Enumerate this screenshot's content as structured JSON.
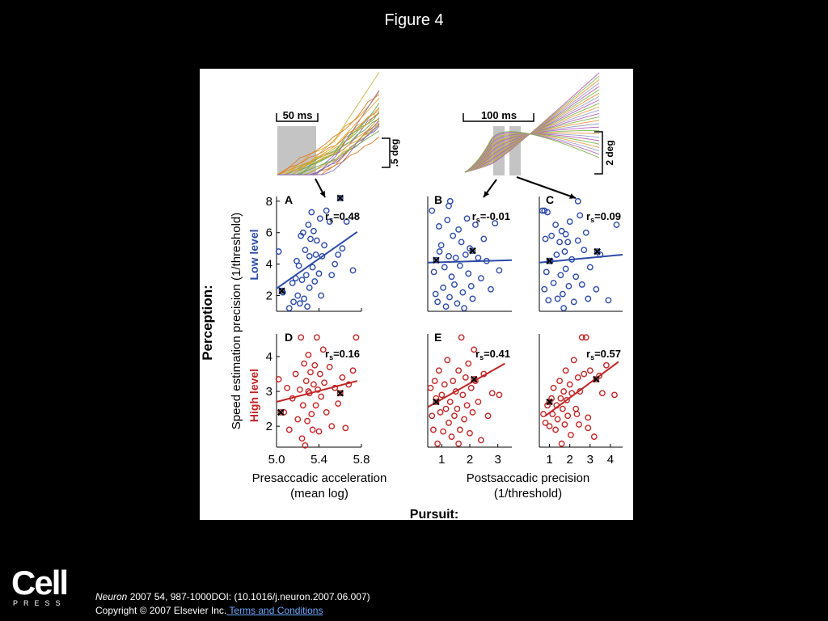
{
  "slide": {
    "title": "Figure 4",
    "publisher_logo": {
      "name": "Cell",
      "sub": "PRESS"
    },
    "citation": {
      "journal": "Neuron",
      "rest": " 2007 54, 987-1000DOI: (10.1016/j.neuron.2007.06.007)"
    },
    "copyright": "Copyright © 2007 Elsevier Inc.",
    "terms_link": " Terms and Conditions"
  },
  "colors": {
    "blue": "#2b4aa6",
    "red": "#c12525",
    "gray": "#c4c4c4",
    "black": "#000000"
  },
  "trace_insets": [
    {
      "scale_time": "50 ms",
      "scale_pos": ".5 deg",
      "line_colors": [
        "#e0a020",
        "#8a6ab0",
        "#6aa84f",
        "#e07b24",
        "#c9b34a"
      ]
    },
    {
      "scale_time": "100 ms",
      "scale_pos": "2 deg",
      "line_colors": [
        "#b95fb9",
        "#7fb74a",
        "#f0963a",
        "#9aa0ca"
      ]
    }
  ],
  "chart_data": [
    {
      "type": "scatter",
      "panel": "A",
      "row": "Low level",
      "xlim": [
        5.0,
        5.8
      ],
      "xticks": [
        5.0,
        5.4,
        5.8
      ],
      "ylim": [
        1,
        8.3
      ],
      "yticks": [
        2,
        4,
        6,
        8
      ],
      "stat_label": "r",
      "stat_sub": "s",
      "stat_value": "=0.48",
      "points": [
        [
          5.02,
          4.8
        ],
        [
          5.06,
          2.2
        ],
        [
          5.12,
          1.2
        ],
        [
          5.15,
          2.8
        ],
        [
          5.16,
          1.6
        ],
        [
          5.18,
          3.1
        ],
        [
          5.19,
          4.2
        ],
        [
          5.2,
          2
        ],
        [
          5.21,
          3.9
        ],
        [
          5.22,
          1.5
        ],
        [
          5.23,
          5.8
        ],
        [
          5.24,
          3
        ],
        [
          5.25,
          6
        ],
        [
          5.26,
          1.8
        ],
        [
          5.27,
          4.9
        ],
        [
          5.28,
          3.3
        ],
        [
          5.29,
          1.3
        ],
        [
          5.3,
          6.5
        ],
        [
          5.31,
          4.5
        ],
        [
          5.31,
          2.5
        ],
        [
          5.32,
          5.6
        ],
        [
          5.33,
          7.3
        ],
        [
          5.34,
          3.8
        ],
        [
          5.35,
          6.1
        ],
        [
          5.36,
          2.9
        ],
        [
          5.37,
          4.6
        ],
        [
          5.38,
          5.5
        ],
        [
          5.4,
          3.4
        ],
        [
          5.41,
          6.9
        ],
        [
          5.42,
          2
        ],
        [
          5.43,
          4.5
        ],
        [
          5.45,
          5.2
        ],
        [
          5.47,
          7.4
        ],
        [
          5.5,
          6.7
        ],
        [
          5.52,
          3.3
        ],
        [
          5.55,
          4
        ],
        [
          5.58,
          4.6
        ],
        [
          5.62,
          5
        ],
        [
          5.66,
          6.7
        ],
        [
          5.72,
          3.6
        ]
      ],
      "x_marks": [
        [
          5.05,
          2.3
        ],
        [
          5.6,
          8.2
        ]
      ],
      "fit": [
        [
          5.0,
          2.45
        ],
        [
          5.76,
          6.05
        ]
      ]
    },
    {
      "type": "scatter",
      "panel": "B",
      "row": "Low level",
      "xlim": [
        0.5,
        3.5
      ],
      "ylim": [
        1,
        8.3
      ],
      "stat_label": "r",
      "stat_sub": "s",
      "stat_value": "=-0.01",
      "points": [
        [
          0.65,
          7.4
        ],
        [
          0.72,
          3.5
        ],
        [
          0.78,
          2.1
        ],
        [
          0.85,
          1.6
        ],
        [
          0.9,
          6.4
        ],
        [
          0.92,
          4.8
        ],
        [
          0.98,
          5.2
        ],
        [
          1.05,
          2.5
        ],
        [
          1.1,
          3.8
        ],
        [
          1.15,
          1.3
        ],
        [
          1.2,
          6.8
        ],
        [
          1.25,
          4.5
        ],
        [
          1.28,
          1.9
        ],
        [
          1.3,
          8
        ],
        [
          1.35,
          3.2
        ],
        [
          1.4,
          5.8
        ],
        [
          1.45,
          2.7
        ],
        [
          1.5,
          4.4
        ],
        [
          1.55,
          1.5
        ],
        [
          1.6,
          6.2
        ],
        [
          1.65,
          3.9
        ],
        [
          1.7,
          5.4
        ],
        [
          1.75,
          2.2
        ],
        [
          1.8,
          1.2
        ],
        [
          1.85,
          4.6
        ],
        [
          1.9,
          6.9
        ],
        [
          1.95,
          3.4
        ],
        [
          2,
          5
        ],
        [
          2.05,
          2.6
        ],
        [
          2.1,
          1.8
        ],
        [
          2.2,
          6.5
        ],
        [
          2.3,
          4.4
        ],
        [
          2.4,
          3.1
        ],
        [
          2.5,
          5.6
        ],
        [
          2.6,
          4.2
        ],
        [
          2.75,
          2.4
        ],
        [
          2.9,
          6.6
        ],
        [
          3.05,
          3.6
        ],
        [
          1.25,
          7.7
        ]
      ],
      "x_marks": [
        [
          0.8,
          4.25
        ],
        [
          2.1,
          4.85
        ]
      ],
      "fit": [
        [
          0.5,
          4.1
        ],
        [
          3.5,
          4.25
        ]
      ]
    },
    {
      "type": "scatter",
      "panel": "C",
      "row": "Low level",
      "xlim": [
        0.5,
        4.6
      ],
      "ylim": [
        1,
        8.3
      ],
      "stat_label": "r",
      "stat_sub": "s",
      "stat_value": "=0.09",
      "points": [
        [
          0.65,
          7.4
        ],
        [
          0.75,
          2.4
        ],
        [
          0.8,
          5.6
        ],
        [
          0.85,
          3.5
        ],
        [
          0.9,
          7.3
        ],
        [
          0.95,
          1.7
        ],
        [
          1.05,
          4.2
        ],
        [
          1.1,
          5.8
        ],
        [
          1.2,
          2.8
        ],
        [
          1.3,
          6.5
        ],
        [
          1.35,
          4.6
        ],
        [
          1.4,
          1.8
        ],
        [
          1.5,
          5.4
        ],
        [
          1.55,
          3.3
        ],
        [
          1.6,
          6.1
        ],
        [
          1.65,
          2.1
        ],
        [
          1.7,
          1.2
        ],
        [
          1.75,
          4.8
        ],
        [
          1.8,
          3.7
        ],
        [
          1.9,
          5.4
        ],
        [
          1.95,
          2.6
        ],
        [
          2,
          6.7
        ],
        [
          2.1,
          4.3
        ],
        [
          2.2,
          1.6
        ],
        [
          2.3,
          3.2
        ],
        [
          2.4,
          5.5
        ],
        [
          2.5,
          7.1
        ],
        [
          2.6,
          2.7
        ],
        [
          2.7,
          4.9
        ],
        [
          2.8,
          6
        ],
        [
          2.9,
          1.8
        ],
        [
          3,
          3.8
        ],
        [
          3.3,
          2.4
        ],
        [
          3.5,
          4.6
        ],
        [
          3.9,
          1.7
        ],
        [
          4.3,
          6.5
        ],
        [
          2.4,
          8
        ],
        [
          1.8,
          5.9
        ],
        [
          0.75,
          7.4
        ]
      ],
      "x_marks": [
        [
          1,
          4.2
        ],
        [
          3.35,
          4.8
        ]
      ],
      "fit": [
        [
          0.5,
          4.1
        ],
        [
          4.6,
          4.6
        ]
      ]
    },
    {
      "type": "scatter",
      "panel": "D",
      "row": "High level",
      "xlim": [
        5.0,
        5.8
      ],
      "xticks": [
        5.0,
        5.4,
        5.8
      ],
      "ylim": [
        1.4,
        4.65
      ],
      "yticks": [
        2,
        3,
        4
      ],
      "stat_label": "r",
      "stat_sub": "s",
      "stat_value": "=0.16",
      "points": [
        [
          5.02,
          3.35
        ],
        [
          5.07,
          2.4
        ],
        [
          5.1,
          3.1
        ],
        [
          5.12,
          1.9
        ],
        [
          5.15,
          2.8
        ],
        [
          5.18,
          3.5
        ],
        [
          5.2,
          2.2
        ],
        [
          5.22,
          3.05
        ],
        [
          5.23,
          4.55
        ],
        [
          5.24,
          1.65
        ],
        [
          5.25,
          2.6
        ],
        [
          5.26,
          3.8
        ],
        [
          5.27,
          1.45
        ],
        [
          5.28,
          3.3
        ],
        [
          5.29,
          2.15
        ],
        [
          5.3,
          4.05
        ],
        [
          5.31,
          2.95
        ],
        [
          5.32,
          3.55
        ],
        [
          5.33,
          2.35
        ],
        [
          5.34,
          1.9
        ],
        [
          5.35,
          3.2
        ],
        [
          5.36,
          3.75
        ],
        [
          5.37,
          2.6
        ],
        [
          5.38,
          4.55
        ],
        [
          5.39,
          3.05
        ],
        [
          5.4,
          1.85
        ],
        [
          5.41,
          3.5
        ],
        [
          5.42,
          2.85
        ],
        [
          5.44,
          4.2
        ],
        [
          5.45,
          3.25
        ],
        [
          5.47,
          2.4
        ],
        [
          5.5,
          3.7
        ],
        [
          5.52,
          2
        ],
        [
          5.55,
          3.1
        ],
        [
          5.58,
          2.65
        ],
        [
          5.62,
          3.4
        ],
        [
          5.65,
          1.95
        ],
        [
          5.68,
          3.2
        ],
        [
          5.72,
          3.6
        ],
        [
          5.75,
          4.55
        ],
        [
          5.3,
          3
        ]
      ],
      "x_marks": [
        [
          5.04,
          2.4
        ],
        [
          5.6,
          2.95
        ]
      ],
      "fit": [
        [
          5.0,
          2.7
        ],
        [
          5.76,
          3.3
        ]
      ]
    },
    {
      "type": "scatter",
      "panel": "E",
      "row": "High level",
      "xlim": [
        0.5,
        3.5
      ],
      "xticks": [
        1,
        2,
        3
      ],
      "ylim": [
        1.4,
        4.65
      ],
      "stat_label": "r",
      "stat_sub": "s",
      "stat_value": "=0.41",
      "points": [
        [
          0.6,
          3.1
        ],
        [
          0.65,
          2.3
        ],
        [
          0.7,
          1.9
        ],
        [
          0.75,
          3.3
        ],
        [
          0.8,
          2.8
        ],
        [
          0.85,
          1.5
        ],
        [
          0.9,
          3.6
        ],
        [
          0.95,
          2.4
        ],
        [
          1,
          2.9
        ],
        [
          1.05,
          1.85
        ],
        [
          1.1,
          3.2
        ],
        [
          1.15,
          2.5
        ],
        [
          1.2,
          3.9
        ],
        [
          1.25,
          2.1
        ],
        [
          1.3,
          2.7
        ],
        [
          1.35,
          1.7
        ],
        [
          1.4,
          3.3
        ],
        [
          1.45,
          2.3
        ],
        [
          1.5,
          3
        ],
        [
          1.55,
          2.5
        ],
        [
          1.6,
          3.6
        ],
        [
          1.65,
          1.9
        ],
        [
          1.7,
          4.55
        ],
        [
          1.75,
          2.9
        ],
        [
          1.8,
          2.2
        ],
        [
          1.85,
          3.4
        ],
        [
          1.9,
          2.6
        ],
        [
          1.95,
          3.8
        ],
        [
          2,
          1.8
        ],
        [
          2.05,
          3.1
        ],
        [
          2.1,
          2.4
        ],
        [
          2.15,
          4.2
        ],
        [
          2.2,
          3.3
        ],
        [
          2.3,
          2.7
        ],
        [
          2.4,
          1.6
        ],
        [
          2.5,
          3.5
        ],
        [
          2.65,
          2.3
        ],
        [
          2.8,
          2.95
        ],
        [
          3.05,
          2.9
        ],
        [
          1.6,
          1.5
        ]
      ],
      "x_marks": [
        [
          0.8,
          2.7
        ],
        [
          2.15,
          3.35
        ]
      ],
      "fit": [
        [
          0.5,
          2.55
        ],
        [
          3.25,
          3.8
        ]
      ]
    },
    {
      "type": "scatter",
      "panel": "",
      "row": "High level",
      "xlim": [
        0.5,
        4.6
      ],
      "xticks": [
        1,
        2,
        3,
        4
      ],
      "ylim": [
        1.4,
        4.65
      ],
      "stat_label": "r",
      "stat_sub": "s",
      "stat_value": "=0.57",
      "points": [
        [
          0.7,
          2.35
        ],
        [
          0.8,
          2.1
        ],
        [
          0.9,
          2.6
        ],
        [
          1,
          2
        ],
        [
          1.1,
          2.8
        ],
        [
          1.15,
          2.35
        ],
        [
          1.2,
          3.1
        ],
        [
          1.3,
          1.9
        ],
        [
          1.35,
          2.6
        ],
        [
          1.4,
          2.2
        ],
        [
          1.5,
          3.3
        ],
        [
          1.55,
          2.8
        ],
        [
          1.6,
          1.5
        ],
        [
          1.65,
          2.5
        ],
        [
          1.7,
          3
        ],
        [
          1.75,
          2.05
        ],
        [
          1.8,
          3.6
        ],
        [
          1.85,
          2.75
        ],
        [
          1.9,
          2.3
        ],
        [
          2,
          3.2
        ],
        [
          2.05,
          1.75
        ],
        [
          2.1,
          2.95
        ],
        [
          2.2,
          3.9
        ],
        [
          2.3,
          2.5
        ],
        [
          2.4,
          3.4
        ],
        [
          2.45,
          2.05
        ],
        [
          2.5,
          3
        ],
        [
          2.6,
          4.55
        ],
        [
          2.7,
          3.5
        ],
        [
          2.8,
          4.55
        ],
        [
          2.9,
          2.25
        ],
        [
          3,
          3.6
        ],
        [
          3.2,
          1.7
        ],
        [
          3.45,
          3.45
        ],
        [
          3.6,
          2.95
        ],
        [
          3.8,
          3.75
        ],
        [
          4.2,
          2.9
        ],
        [
          2.35,
          2.35
        ],
        [
          2.9,
          1.95
        ]
      ],
      "x_marks": [
        [
          1,
          2.7
        ],
        [
          3.3,
          3.35
        ]
      ],
      "fit": [
        [
          0.8,
          2.3
        ],
        [
          4.4,
          3.85
        ]
      ]
    }
  ],
  "panel_labels": [
    "A",
    "B",
    "C",
    "D",
    "E"
  ],
  "axes": {
    "y_title": "Speed estimation precision (1/threshold)",
    "perception": "Perception:",
    "low_level": "Low level",
    "high_level": "High level",
    "x_title_left_1": "Presaccadic acceleration",
    "x_title_left_2": "(mean log)",
    "x_title_right_1": "Postsaccadic precision",
    "x_title_right_2": "(1/threshold)",
    "pursuit": "Pursuit:"
  },
  "tick_labels": {
    "low_y": [
      "2",
      "4",
      "6",
      "8"
    ],
    "high_y": [
      "2",
      "3",
      "4"
    ],
    "x_left": [
      "5.0",
      "5.4",
      "5.8"
    ],
    "x_mid": [
      "1",
      "2",
      "3"
    ],
    "x_right": [
      "1",
      "2",
      "3",
      "4"
    ]
  }
}
